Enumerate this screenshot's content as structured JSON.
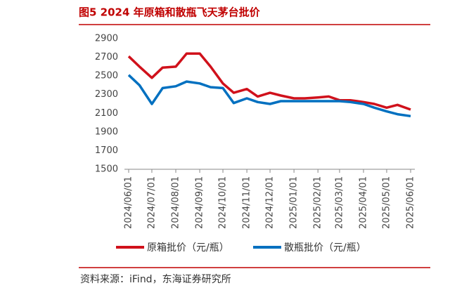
{
  "chart_data": {
    "type": "line",
    "title": "图5  2024 年原箱和散瓶飞天茅台批价",
    "source": "资料来源：iFind，东海证券研究所",
    "x": [
      "2024/06/01",
      "2024/06/15",
      "2024/07/01",
      "2024/07/15",
      "2024/08/01",
      "2024/08/15",
      "2024/09/01",
      "2024/09/15",
      "2024/10/01",
      "2024/10/15",
      "2024/11/01",
      "2024/11/15",
      "2024/12/01",
      "2024/12/15",
      "2025/01/01",
      "2025/01/15",
      "2025/02/01",
      "2025/02/15",
      "2025/03/01",
      "2025/03/15",
      "2025/04/01",
      "2025/04/15",
      "2025/05/01",
      "2025/05/15",
      "2025/06/01"
    ],
    "series": [
      {
        "name": "原箱批价（元/瓶）",
        "color": "#d0111b",
        "values": [
          2710,
          2600,
          2480,
          2590,
          2600,
          2740,
          2740,
          2600,
          2420,
          2320,
          2360,
          2280,
          2320,
          2290,
          2260,
          2260,
          2270,
          2280,
          2240,
          2240,
          2220,
          2200,
          2160,
          2190,
          2140
        ]
      },
      {
        "name": "散瓶批价（元/瓶）",
        "color": "#0070c0",
        "values": [
          2510,
          2400,
          2200,
          2370,
          2390,
          2440,
          2420,
          2380,
          2370,
          2210,
          2260,
          2220,
          2200,
          2230,
          2230,
          2230,
          2230,
          2230,
          2230,
          2220,
          2200,
          2160,
          2120,
          2090,
          2070
        ]
      }
    ],
    "xticks": [
      "2024/06/01",
      "2024/07/01",
      "2024/08/01",
      "2024/09/01",
      "2024/10/01",
      "2024/11/01",
      "2024/12/01",
      "2025/01/01",
      "2025/02/01",
      "2025/03/01",
      "2025/04/01",
      "2025/05/01",
      "2025/06/01"
    ],
    "ylim": [
      1500,
      2900
    ],
    "yticks": [
      1500,
      1700,
      1900,
      2100,
      2300,
      2500,
      2700,
      2900
    ]
  }
}
